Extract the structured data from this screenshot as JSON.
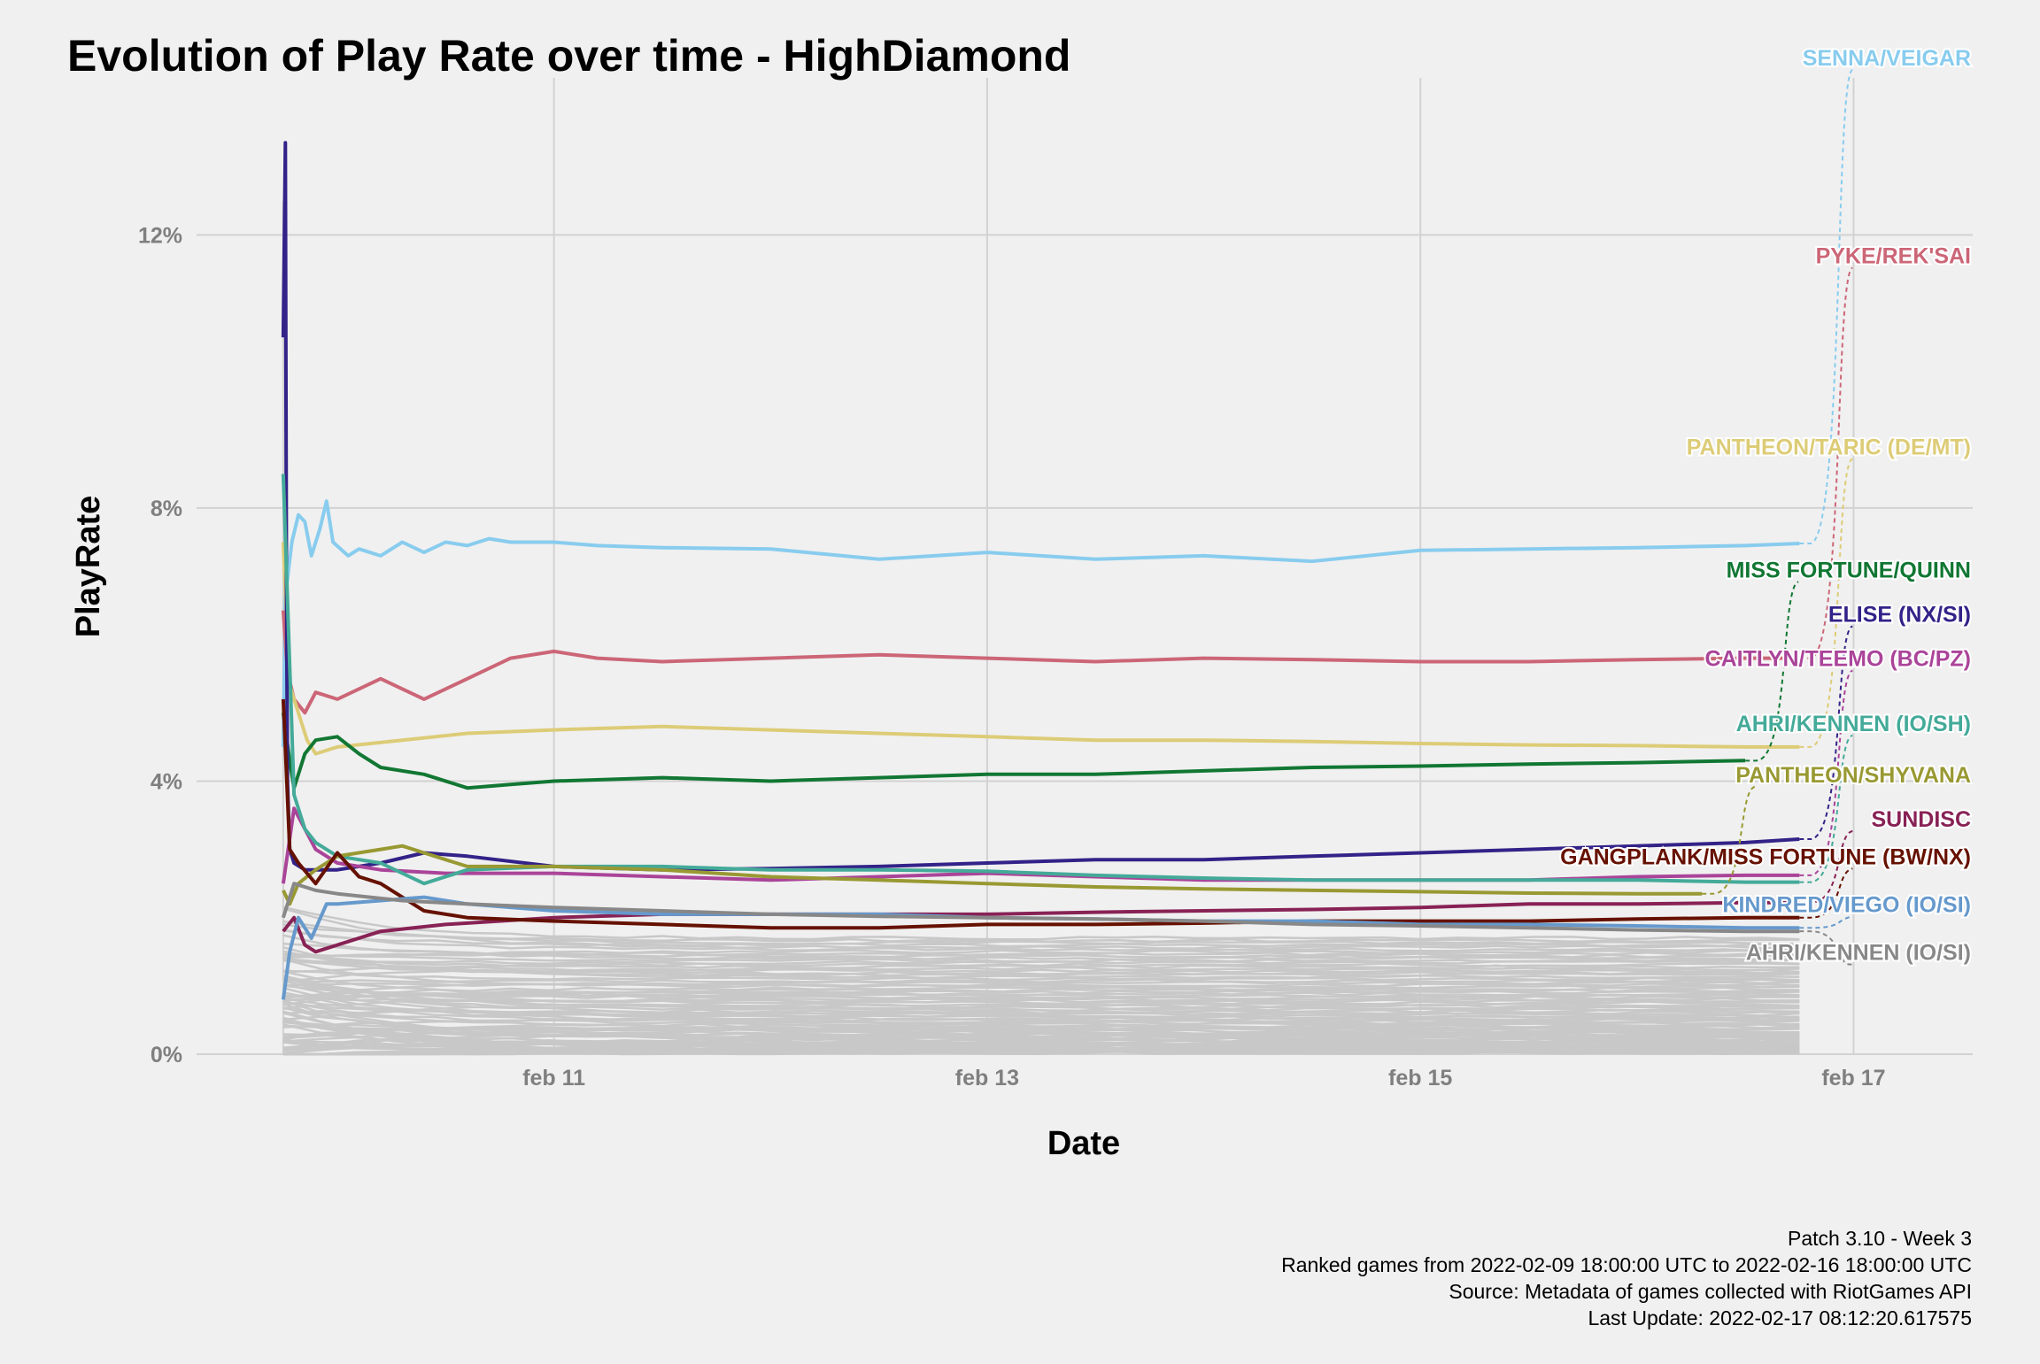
{
  "chart_data": {
    "type": "line",
    "title": "Evolution of Play Rate over time - HighDiamond",
    "xlabel": "Date",
    "ylabel": "PlayRate",
    "x_ticks": [
      "feb 11",
      "feb 13",
      "feb 15",
      "feb 17"
    ],
    "x_tick_values": [
      1.0,
      3.0,
      5.0,
      7.0
    ],
    "xlim": [
      -0.65,
      7.55
    ],
    "y_ticks": [
      "0%",
      "4%",
      "8%",
      "12%"
    ],
    "y_tick_values": [
      0,
      4,
      8,
      12
    ],
    "ylim": [
      0,
      14.3
    ],
    "grid": true,
    "legend": "direct labels on the right",
    "series": [
      {
        "name": "SENNA/VEIGAR",
        "color": "#88ccee",
        "x": [
          -0.25,
          -0.24,
          -0.21,
          -0.18,
          -0.15,
          -0.12,
          -0.08,
          -0.05,
          -0.02,
          0.05,
          0.1,
          0.2,
          0.3,
          0.4,
          0.5,
          0.6,
          0.7,
          0.8,
          1.0,
          1.2,
          1.5,
          2.0,
          2.5,
          3.0,
          3.5,
          4.0,
          4.5,
          5.0,
          5.5,
          6.0,
          6.5,
          6.75
        ],
        "y": [
          4.5,
          6.7,
          7.5,
          7.9,
          7.8,
          7.3,
          7.7,
          8.1,
          7.5,
          7.3,
          7.4,
          7.3,
          7.5,
          7.35,
          7.5,
          7.45,
          7.55,
          7.5,
          7.5,
          7.45,
          7.42,
          7.4,
          7.25,
          7.35,
          7.25,
          7.3,
          7.22,
          7.38,
          7.4,
          7.42,
          7.45,
          7.48
        ],
        "label_y": 14.6
      },
      {
        "name": "PYKE/REK'SAI",
        "color": "#cc6677",
        "x": [
          -0.25,
          -0.23,
          -0.2,
          -0.15,
          -0.1,
          0.0,
          0.2,
          0.4,
          0.6,
          0.8,
          1.0,
          1.2,
          1.5,
          2.0,
          2.5,
          3.0,
          3.5,
          4.0,
          4.5,
          5.0,
          5.5,
          6.0,
          6.5,
          6.75
        ],
        "y": [
          6.5,
          5.6,
          5.2,
          5.0,
          5.3,
          5.2,
          5.5,
          5.2,
          5.5,
          5.8,
          5.9,
          5.8,
          5.75,
          5.8,
          5.85,
          5.8,
          5.75,
          5.8,
          5.78,
          5.75,
          5.75,
          5.78,
          5.8,
          5.8
        ],
        "label_y": 11.7
      },
      {
        "name": "PANTHEON/TARIC (DE/MT)",
        "color": "#ddcc77",
        "x": [
          -0.25,
          -0.22,
          -0.18,
          -0.14,
          -0.1,
          0.0,
          0.3,
          0.6,
          1.0,
          1.5,
          2.0,
          2.5,
          3.0,
          3.5,
          4.0,
          4.5,
          5.0,
          5.5,
          6.0,
          6.5,
          6.75
        ],
        "y": [
          7.5,
          5.4,
          5.0,
          4.6,
          4.4,
          4.5,
          4.6,
          4.7,
          4.75,
          4.8,
          4.75,
          4.7,
          4.65,
          4.6,
          4.6,
          4.58,
          4.55,
          4.53,
          4.52,
          4.5,
          4.5
        ],
        "label_y": 8.9
      },
      {
        "name": "MISS FORTUNE/QUINN",
        "color": "#117733",
        "x": [
          -0.25,
          -0.22,
          -0.2,
          -0.15,
          -0.1,
          0.0,
          0.1,
          0.2,
          0.4,
          0.6,
          0.8,
          1.0,
          1.5,
          2.0,
          2.5,
          3.0,
          3.5,
          4.0,
          4.5,
          5.0,
          5.5,
          6.0,
          6.5
        ],
        "y": [
          5.0,
          4.3,
          3.9,
          4.4,
          4.6,
          4.65,
          4.4,
          4.2,
          4.1,
          3.9,
          3.95,
          4.0,
          4.05,
          4.0,
          4.05,
          4.1,
          4.1,
          4.15,
          4.2,
          4.22,
          4.25,
          4.27,
          4.3
        ],
        "label_y": 7.1
      },
      {
        "name": "ELISE (NX/SI)",
        "color": "#332288",
        "x": [
          -0.25,
          -0.24,
          -0.235,
          -0.23,
          -0.22,
          -0.2,
          -0.15,
          0.0,
          0.2,
          0.4,
          0.6,
          1.0,
          1.5,
          2.0,
          2.5,
          3.0,
          3.5,
          4.0,
          4.5,
          5.0,
          5.5,
          6.0,
          6.5,
          6.75
        ],
        "y": [
          10.5,
          13.35,
          7.0,
          4.0,
          3.0,
          2.8,
          2.7,
          2.7,
          2.8,
          2.95,
          2.9,
          2.75,
          2.7,
          2.72,
          2.75,
          2.8,
          2.85,
          2.85,
          2.9,
          2.95,
          3.0,
          3.05,
          3.1,
          3.15
        ],
        "label_y": 6.45
      },
      {
        "name": "CAITLYN/TEEMO (BC/PZ)",
        "color": "#aa4499",
        "x": [
          -0.25,
          -0.2,
          -0.15,
          -0.1,
          0.0,
          0.2,
          0.5,
          1.0,
          1.5,
          2.0,
          2.5,
          3.0,
          3.5,
          4.0,
          4.5,
          5.0,
          5.5,
          6.0,
          6.5,
          6.75
        ],
        "y": [
          2.5,
          3.6,
          3.3,
          3.0,
          2.8,
          2.7,
          2.65,
          2.65,
          2.6,
          2.55,
          2.6,
          2.65,
          2.6,
          2.55,
          2.55,
          2.55,
          2.55,
          2.6,
          2.62,
          2.62
        ],
        "label_y": 5.8
      },
      {
        "name": "AHRI/KENNEN (IO/SH)",
        "color": "#44aa99",
        "x": [
          -0.25,
          -0.2,
          -0.15,
          -0.1,
          0.0,
          0.2,
          0.4,
          0.6,
          1.0,
          1.5,
          2.0,
          2.5,
          3.0,
          3.5,
          4.0,
          4.5,
          5.0,
          5.5,
          6.0,
          6.5,
          6.75
        ],
        "y": [
          8.5,
          3.8,
          3.3,
          3.1,
          2.9,
          2.8,
          2.5,
          2.7,
          2.75,
          2.75,
          2.7,
          2.7,
          2.68,
          2.62,
          2.58,
          2.55,
          2.55,
          2.55,
          2.55,
          2.52,
          2.52
        ],
        "label_y": 4.85
      },
      {
        "name": "PANTHEON/SHYVANA",
        "color": "#999933",
        "x": [
          -0.25,
          -0.22,
          -0.18,
          -0.1,
          0.0,
          0.2,
          0.3,
          0.4,
          0.6,
          1.0,
          1.5,
          2.0,
          2.5,
          3.0,
          3.5,
          4.0,
          4.5,
          5.0,
          5.5,
          6.0,
          6.3
        ],
        "y": [
          2.4,
          2.2,
          2.5,
          2.7,
          2.9,
          3.0,
          3.05,
          2.95,
          2.75,
          2.75,
          2.7,
          2.6,
          2.55,
          2.5,
          2.45,
          2.42,
          2.4,
          2.38,
          2.36,
          2.35,
          2.35
        ],
        "label_y": 4.1
      },
      {
        "name": "SUNDISC",
        "color": "#882255",
        "x": [
          -0.25,
          -0.2,
          -0.15,
          -0.1,
          0.0,
          0.2,
          0.5,
          1.0,
          1.5,
          2.0,
          2.5,
          3.0,
          3.5,
          4.0,
          4.5,
          5.0,
          5.5,
          6.0,
          6.5,
          6.75
        ],
        "y": [
          1.8,
          2.0,
          1.6,
          1.5,
          1.6,
          1.8,
          1.9,
          2.0,
          2.05,
          2.05,
          2.05,
          2.05,
          2.08,
          2.1,
          2.12,
          2.15,
          2.2,
          2.2,
          2.22,
          2.22
        ],
        "label_y": 3.45
      },
      {
        "name": "GANGPLANK/MISS FORTUNE (BW/NX)",
        "color": "#661100",
        "x": [
          -0.25,
          -0.22,
          -0.18,
          -0.1,
          0.0,
          0.1,
          0.2,
          0.4,
          0.6,
          1.0,
          1.5,
          2.0,
          2.5,
          3.0,
          3.5,
          4.0,
          4.5,
          5.0,
          5.5,
          6.0,
          6.5,
          6.75
        ],
        "y": [
          5.2,
          3.0,
          2.8,
          2.5,
          2.95,
          2.6,
          2.5,
          2.1,
          2.0,
          1.95,
          1.9,
          1.85,
          1.85,
          1.9,
          1.9,
          1.92,
          1.95,
          1.95,
          1.95,
          1.98,
          2.0,
          2.0
        ],
        "label_y": 2.9
      },
      {
        "name": "KINDRED/VIEGO (IO/SI)",
        "color": "#6699cc",
        "x": [
          -0.25,
          -0.22,
          -0.18,
          -0.12,
          -0.05,
          0.0,
          0.2,
          0.4,
          0.6,
          1.0,
          1.5,
          2.0,
          2.5,
          3.0,
          3.5,
          4.0,
          4.5,
          5.0,
          5.5,
          6.0,
          6.5,
          6.75
        ],
        "y": [
          0.8,
          1.5,
          2.0,
          1.7,
          2.2,
          2.2,
          2.25,
          2.3,
          2.2,
          2.1,
          2.05,
          2.05,
          2.05,
          2.0,
          1.98,
          1.95,
          1.95,
          1.9,
          1.9,
          1.88,
          1.85,
          1.85
        ],
        "label_y": 2.2
      },
      {
        "name": "AHRI/KENNEN (IO/SI)",
        "color": "#888888",
        "x": [
          -0.25,
          -0.2,
          -0.1,
          0.0,
          0.3,
          0.6,
          1.0,
          1.5,
          2.0,
          2.5,
          3.0,
          3.5,
          4.0,
          4.5,
          5.0,
          5.5,
          6.0,
          6.5,
          6.75
        ],
        "y": [
          2.0,
          2.5,
          2.4,
          2.35,
          2.25,
          2.2,
          2.15,
          2.1,
          2.05,
          2.02,
          2.0,
          1.98,
          1.95,
          1.9,
          1.88,
          1.85,
          1.82,
          1.8,
          1.8
        ],
        "label_y": 1.5
      }
    ],
    "background_series": {
      "color": "#c8c8c8",
      "count": 80,
      "x_range": [
        -0.25,
        6.75
      ],
      "y_range": [
        0.02,
        1.7
      ]
    }
  },
  "caption": {
    "lines": [
      "Patch 3.10 - Week 3",
      "Ranked games from 2022-02-09 18:00:00 UTC to 2022-02-16 18:00:00 UTC",
      "Source: Metadata of games collected with RiotGames API",
      "Last Update: 2022-02-17 08:12:20.617575"
    ]
  }
}
